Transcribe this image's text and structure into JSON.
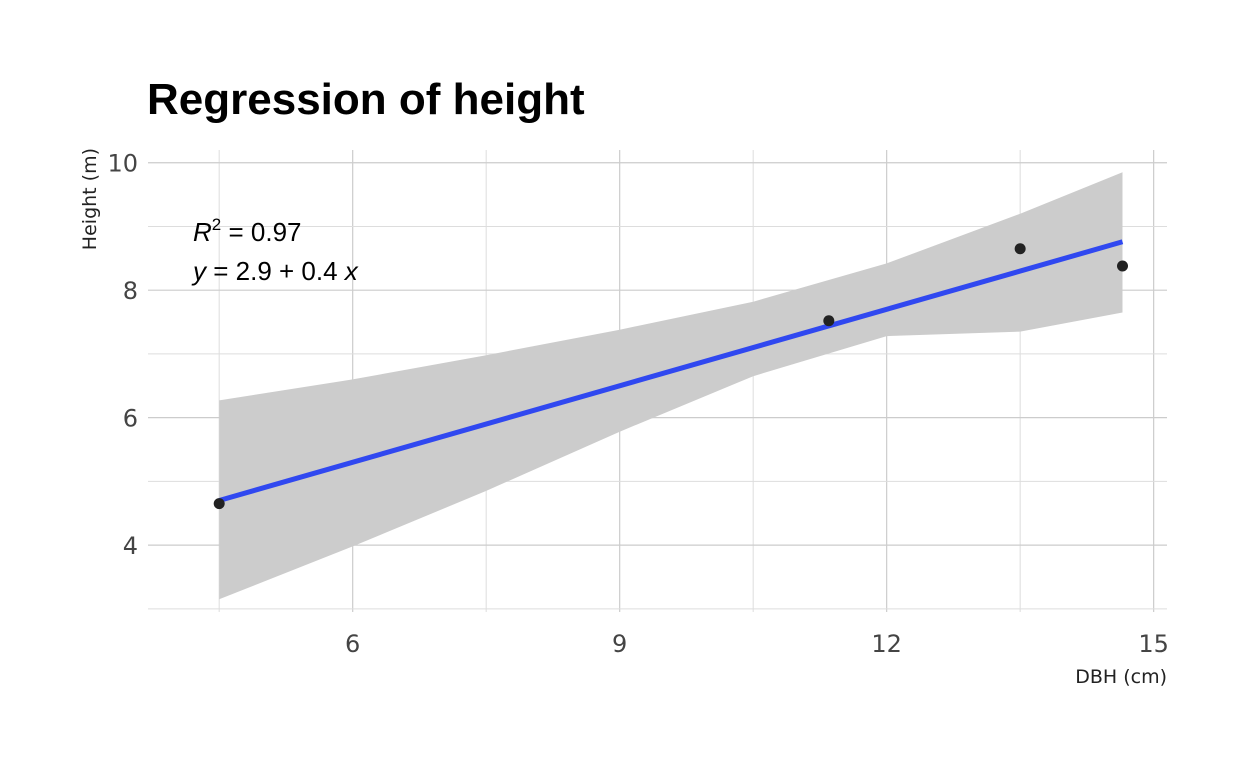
{
  "chart_data": {
    "type": "scatter",
    "title": "Regression of height",
    "xlabel": "DBH (cm)",
    "ylabel": "Height (m)",
    "xlim": [
      3.7,
      15.15
    ],
    "ylim": [
      2.95,
      10.2
    ],
    "x_ticks": [
      6,
      9,
      12,
      15
    ],
    "x_tick_labels": [
      "6",
      "9",
      "12",
      "15"
    ],
    "y_ticks": [
      4,
      6,
      8,
      10
    ],
    "y_tick_labels": [
      "4",
      "6",
      "8",
      "10"
    ],
    "grid": true,
    "series": [
      {
        "points": [
          {
            "x": 4.5,
            "y": 4.65
          },
          {
            "x": 11.35,
            "y": 7.52
          },
          {
            "x": 13.5,
            "y": 8.65
          },
          {
            "x": 14.65,
            "y": 8.38
          }
        ],
        "color": "#222222"
      }
    ],
    "fit": {
      "intercept": 2.9,
      "slope": 0.4,
      "line": [
        [
          4.5,
          4.7
        ],
        [
          14.65,
          8.76
        ]
      ],
      "color": "#3048f0",
      "confidence_band": {
        "color": "#cccccc",
        "points": [
          [
            4.5,
            3.15,
            6.27
          ],
          [
            6.0,
            3.98,
            6.6
          ],
          [
            7.5,
            4.85,
            6.98
          ],
          [
            9.0,
            5.78,
            7.38
          ],
          [
            10.5,
            6.65,
            7.82
          ],
          [
            12.0,
            7.28,
            8.42
          ],
          [
            13.5,
            7.35,
            9.2
          ],
          [
            14.65,
            7.65,
            9.85
          ]
        ]
      }
    },
    "annotations": {
      "r2_label": "R",
      "r2_sup": "2",
      "r2_value": " = 0.97",
      "eq_y": "y",
      "eq_rhs": " = 2.9 + 0.4 ",
      "eq_x": "x"
    }
  }
}
